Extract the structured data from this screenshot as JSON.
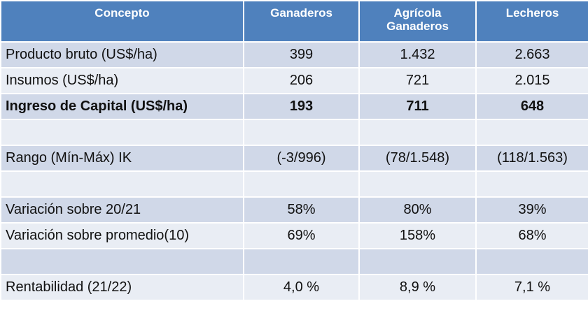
{
  "table": {
    "headers": [
      "Concepto",
      "Ganaderos",
      "Agrícola\nGanaderos",
      "Lecheros"
    ],
    "header_color": "#4f81bd",
    "rows": [
      {
        "concepto": "Producto bruto (US$/ha)",
        "ganaderos": "399",
        "agricola_ganaderos": "1.432",
        "lecheros": "2.663"
      },
      {
        "concepto": "Insumos (US$/ha)",
        "ganaderos": "206",
        "agricola_ganaderos": "721",
        "lecheros": "2.015"
      },
      {
        "concepto": "Ingreso de Capital (US$/ha)",
        "ganaderos": "193",
        "agricola_ganaderos": "711",
        "lecheros": "648",
        "bold": true
      },
      {
        "concepto": "",
        "ganaderos": "",
        "agricola_ganaderos": "",
        "lecheros": ""
      },
      {
        "concepto": "Rango (Mín-Máx) IK",
        "ganaderos": "(-3/996)",
        "agricola_ganaderos": "(78/1.548)",
        "lecheros": "(118/1.563)"
      },
      {
        "concepto": "",
        "ganaderos": "",
        "agricola_ganaderos": "",
        "lecheros": ""
      },
      {
        "concepto": "Variación sobre 20/21",
        "ganaderos": "58%",
        "agricola_ganaderos": "80%",
        "lecheros": "39%"
      },
      {
        "concepto": "Variación sobre promedio(10)",
        "ganaderos": "69%",
        "agricola_ganaderos": "158%",
        "lecheros": "68%"
      },
      {
        "concepto": "",
        "ganaderos": "",
        "agricola_ganaderos": "",
        "lecheros": ""
      },
      {
        "concepto": "Rentabilidad (21/22)",
        "ganaderos": "4,0 %",
        "agricola_ganaderos": "8,9 %",
        "lecheros": "7,1 %"
      }
    ]
  }
}
